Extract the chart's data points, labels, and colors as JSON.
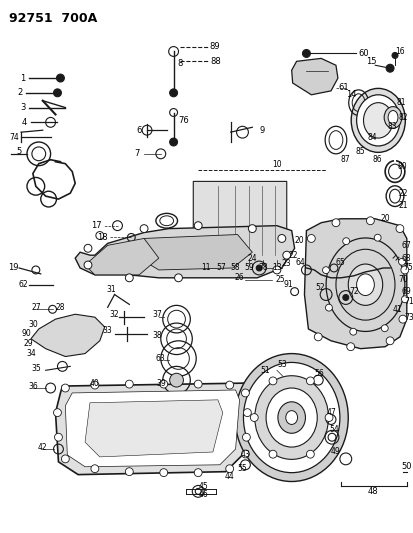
{
  "title": "92751  700A",
  "bg": "#ffffff",
  "lc": "#1a1a1a",
  "tc": "#000000",
  "fw": 4.14,
  "fh": 5.33,
  "dpi": 100
}
